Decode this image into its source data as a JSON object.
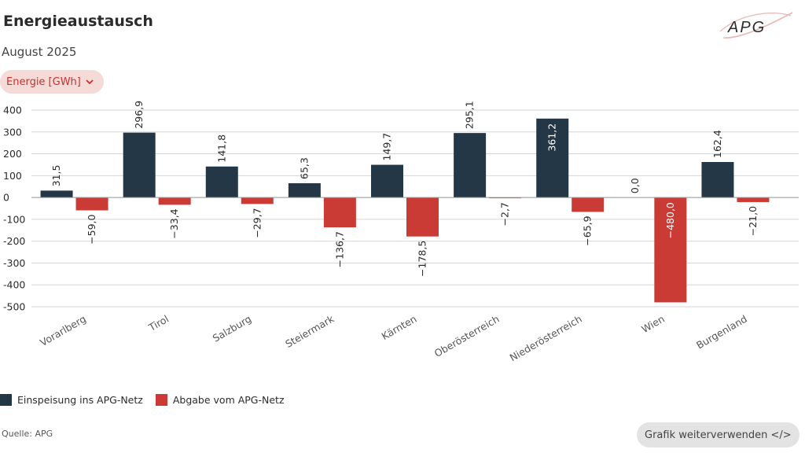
{
  "header": {
    "title": "Energieaustausch",
    "subtitle": "August 2025",
    "logo_text": "APG"
  },
  "dropdown": {
    "label": "Energie [GWh]",
    "icon": "chevron-down-icon"
  },
  "colors": {
    "feed_in": "#243746",
    "withdrawal": "#cb3b36",
    "accent": "#c6322e"
  },
  "chart_data": {
    "type": "bar",
    "title": "Energieaustausch",
    "subtitle": "August 2025",
    "ylabel": "Energie [GWh]",
    "ylim": [
      -500,
      400
    ],
    "yticks": [
      400,
      300,
      200,
      100,
      0,
      -100,
      -200,
      -300,
      -400,
      -500
    ],
    "ytick_labels": [
      "400",
      "300",
      "200",
      "100",
      "0",
      "-100",
      "-200",
      "-300",
      "-400",
      "-500"
    ],
    "grid": true,
    "categories": [
      "Vorarlberg",
      "Tirol",
      "Salzburg",
      "Steiermark",
      "Kärnten",
      "Oberösterreich",
      "Niederösterreich",
      "Wien",
      "Burgenland"
    ],
    "series": [
      {
        "name": "Einspeisung ins APG-Netz",
        "color": "#243746",
        "values": [
          31.5,
          296.9,
          141.8,
          65.3,
          149.7,
          295.1,
          361.2,
          0.0,
          162.4
        ],
        "labels": [
          "31,5",
          "296,9",
          "141,8",
          "65,3",
          "149,7",
          "295,1",
          "361,2",
          "0,0",
          "162,4"
        ]
      },
      {
        "name": "Abgabe vom APG-Netz",
        "color": "#cb3b36",
        "values": [
          -59.0,
          -33.4,
          -29.7,
          -136.7,
          -178.5,
          -2.7,
          -65.9,
          -480.0,
          -21.0
        ],
        "labels": [
          "−59,0",
          "−33,4",
          "−29,7",
          "−136,7",
          "−178,5",
          "−2,7",
          "−65,9",
          "−480,0",
          "−21,0"
        ]
      }
    ],
    "legend_position": "bottom-left"
  },
  "legend": {
    "items": [
      {
        "label": "Einspeisung ins APG-Netz",
        "color": "#243746"
      },
      {
        "label": "Abgabe vom APG-Netz",
        "color": "#cb3b36"
      }
    ]
  },
  "footer": {
    "source": "Quelle: APG",
    "reuse_button": "Grafik weiterverwenden </>"
  }
}
